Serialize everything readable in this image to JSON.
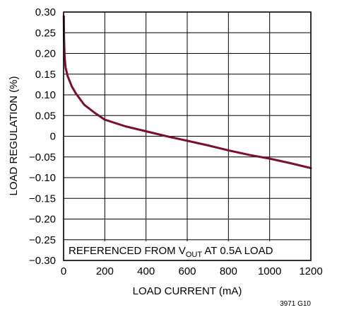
{
  "chart_data": {
    "type": "line",
    "xlabel": "LOAD CURRENT (mA)",
    "ylabel": "LOAD REGULATION (%)",
    "xlim": [
      0,
      1200
    ],
    "ylim": [
      -0.3,
      0.3
    ],
    "x_ticks": [
      "0",
      "200",
      "400",
      "600",
      "800",
      "1000",
      "1200"
    ],
    "y_ticks": [
      "0.30",
      "0.25",
      "0.20",
      "0.15",
      "0.10",
      "0.05",
      "0",
      "−0.05",
      "−0.10",
      "−0.15",
      "−0.20",
      "−0.25",
      "−0.30"
    ],
    "grid": true,
    "series": [
      {
        "color": "#7a0f2e",
        "x": [
          1,
          2,
          5,
          10,
          20,
          40,
          60,
          100,
          150,
          200,
          300,
          400,
          500,
          600,
          700,
          800,
          900,
          1000,
          1100,
          1200
        ],
        "y": [
          0.29,
          0.24,
          0.19,
          0.165,
          0.145,
          0.12,
          0.103,
          0.076,
          0.057,
          0.04,
          0.024,
          0.012,
          0.0,
          -0.011,
          -0.022,
          -0.034,
          -0.045,
          -0.054,
          -0.065,
          -0.077
        ]
      }
    ],
    "annotation": {
      "prefix": "REFERENCED FROM V",
      "subscript": "OUT",
      "suffix": " AT 0.5A LOAD"
    },
    "figure_id": "3971 G10"
  }
}
